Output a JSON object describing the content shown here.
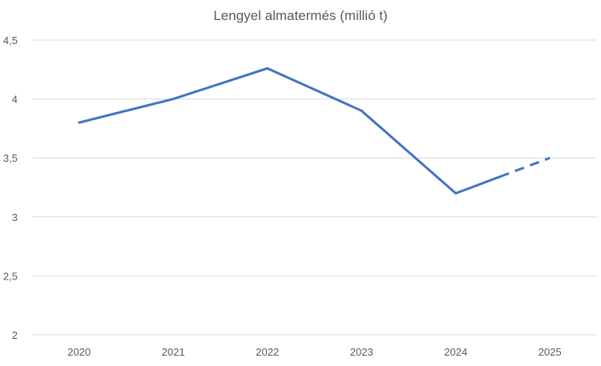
{
  "chart_data": {
    "type": "line",
    "title": "Lengyel almatermés (millió t)",
    "xlabel": "",
    "ylabel": "",
    "categories": [
      "2020",
      "2021",
      "2022",
      "2023",
      "2024",
      "2025"
    ],
    "series": [
      {
        "values": [
          3.8,
          4.0,
          4.26,
          3.9,
          3.2,
          3.5
        ],
        "color": "#4472C4",
        "projected_from": "2024",
        "projected_segment_style": "dashed"
      }
    ],
    "ylim": [
      2,
      4.5
    ],
    "y_ticks": [
      "4,5",
      "4",
      "3,5",
      "3",
      "2,5",
      "2"
    ],
    "y_tick_values": [
      4.5,
      4,
      3.5,
      3,
      2.5,
      2
    ],
    "grid": true,
    "legend": "none",
    "colors": {
      "line": "#4472C4",
      "grid": "#d9d9d9",
      "text": "#595959"
    }
  }
}
